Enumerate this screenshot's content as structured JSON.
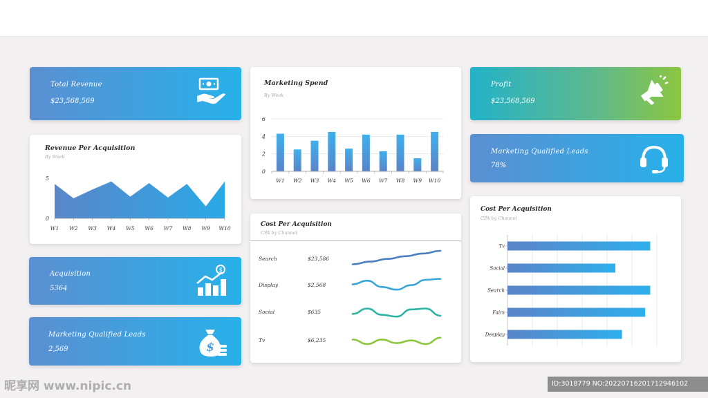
{
  "colors": {
    "accent_blue": "#3d9ee0",
    "bar_top": "#4aa8e8",
    "bar_bottom": "#5a84c8",
    "area": "#3f9fe0",
    "green_line": "#8cc63f",
    "teal_line": "#2bb3a3"
  },
  "kpis": {
    "total_revenue": {
      "title": "Total Revenue",
      "value": "$23,568,569",
      "icon": "money-hand-icon"
    },
    "profit": {
      "title": "Profit",
      "value": "$23,568,569",
      "icon": "megaphone-icon"
    },
    "mql_right": {
      "title": "Marketing Qualified Leads",
      "value": "78%",
      "icon": "headset-icon"
    },
    "acquisition": {
      "title": "Acquisition",
      "value": "5364",
      "icon": "growth-bars-icon"
    },
    "mql_left": {
      "title": "Marketing Qualified Leads",
      "value": "2,569",
      "icon": "money-bag-icon"
    }
  },
  "chart_data": [
    {
      "id": "revenue_per_acquisition",
      "type": "area",
      "title": "Revenue Per Acquisition",
      "subtitle": "By Week",
      "categories": [
        "W1",
        "W2",
        "W3",
        "W4",
        "W5",
        "W6",
        "W7",
        "W8",
        "W9",
        "W10"
      ],
      "values": [
        4.3,
        2.5,
        3.6,
        4.6,
        2.7,
        4.4,
        2.6,
        4.3,
        1.5,
        4.6
      ],
      "ylim": [
        0,
        5
      ],
      "yticks": [
        "0",
        "5"
      ],
      "grid": false
    },
    {
      "id": "marketing_spend",
      "type": "bar",
      "title": "Marketing Spend",
      "subtitle": "By Week",
      "categories": [
        "W1",
        "W2",
        "W3",
        "W4",
        "W5",
        "W6",
        "W7",
        "W8",
        "W9",
        "W10"
      ],
      "values": [
        4.3,
        2.5,
        3.5,
        4.5,
        2.6,
        4.2,
        2.3,
        4.2,
        1.5,
        4.5
      ],
      "ylim": [
        0,
        6
      ],
      "yticks": [
        "0",
        "2",
        "4",
        "6"
      ],
      "grid": true
    },
    {
      "id": "cost_per_acquisition_bar",
      "type": "bar",
      "orientation": "horizontal",
      "title": "Cost Per Acquisition",
      "subtitle": "CPA by Channel",
      "categories": [
        "Tv",
        "Social",
        "Search",
        "Fairs",
        "Desplay"
      ],
      "values": [
        8.6,
        6.5,
        8.6,
        8.3,
        6.9
      ],
      "xlim": [
        0,
        9
      ],
      "grid": true
    }
  ],
  "cpa_table": {
    "title": "Cost Per Acquisition",
    "subtitle": "CPA by Channel",
    "rows": [
      {
        "label": "Search",
        "value": "$23,586",
        "trend": [
          0.25,
          0.4,
          0.55,
          0.7,
          0.85,
          1.0
        ],
        "color": "#4a7fc1"
      },
      {
        "label": "Display",
        "value": "$2,568",
        "trend": [
          0.6,
          0.8,
          0.45,
          0.3,
          0.55,
          0.85,
          0.9
        ],
        "color": "#3aa6d8"
      },
      {
        "label": "Social",
        "value": "$635",
        "trend": [
          0.45,
          0.75,
          0.4,
          0.3,
          0.7,
          0.75,
          0.35
        ],
        "color": "#2bb3a3"
      },
      {
        "label": "Tv",
        "value": "$6,235",
        "trend": [
          0.6,
          0.35,
          0.6,
          0.4,
          0.55,
          0.35,
          0.7
        ],
        "color": "#8cc63f"
      }
    ]
  },
  "watermark": {
    "left": "昵享网 www.nipic.cn",
    "right": "ID:3018779 NO:20220716201712946102"
  }
}
